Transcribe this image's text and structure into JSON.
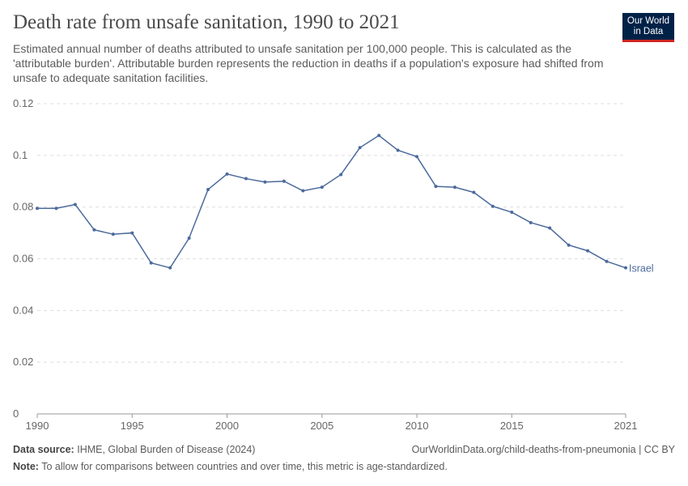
{
  "header": {
    "title": "Death rate from unsafe sanitation, 1990 to 2021",
    "subtitle": "Estimated annual number of deaths attributed to unsafe sanitation per 100,000 people. This is calculated as the 'attributable burden'. Attributable burden represents the reduction in deaths if a population's exposure had shifted from unsafe to adequate sanitation facilities.",
    "logo": "Our World in Data"
  },
  "chart_data": {
    "type": "line",
    "title": "Death rate from unsafe sanitation, 1990 to 2021",
    "xlim": [
      1990,
      2021
    ],
    "ylim": [
      0,
      0.12
    ],
    "xticks": [
      1990,
      1995,
      2000,
      2005,
      2010,
      2015,
      2021
    ],
    "yticks": [
      0,
      0.02,
      0.04,
      0.06,
      0.08,
      0.1,
      0.12
    ],
    "ytick_labels": [
      "0",
      "0.02",
      "0.04",
      "0.06",
      "0.08",
      "0.1",
      "0.12"
    ],
    "grid": "horizontal dashed",
    "color": "#4c6a9c",
    "series": [
      {
        "name": "Israel",
        "x": [
          1990,
          1991,
          1992,
          1993,
          1994,
          1995,
          1996,
          1997,
          1998,
          1999,
          2000,
          2001,
          2002,
          2003,
          2004,
          2005,
          2006,
          2007,
          2008,
          2009,
          2010,
          2011,
          2012,
          2013,
          2014,
          2015,
          2016,
          2017,
          2018,
          2019,
          2020,
          2021
        ],
        "values": [
          0.0795,
          0.0795,
          0.081,
          0.0712,
          0.0695,
          0.07,
          0.0584,
          0.0565,
          0.068,
          0.0868,
          0.0928,
          0.091,
          0.0897,
          0.09,
          0.0863,
          0.0877,
          0.0926,
          0.103,
          0.1077,
          0.102,
          0.0995,
          0.088,
          0.0877,
          0.0857,
          0.0803,
          0.078,
          0.074,
          0.0719,
          0.0653,
          0.0631,
          0.059,
          0.0565
        ]
      }
    ]
  },
  "footer": {
    "source_label": "Data source:",
    "source": "IHME, Global Burden of Disease (2024)",
    "url": "OurWorldinData.org/child-deaths-from-pneumonia | CC BY",
    "note_label": "Note:",
    "note": "To allow for comparisons between countries and over time, this metric is age-standardized."
  }
}
